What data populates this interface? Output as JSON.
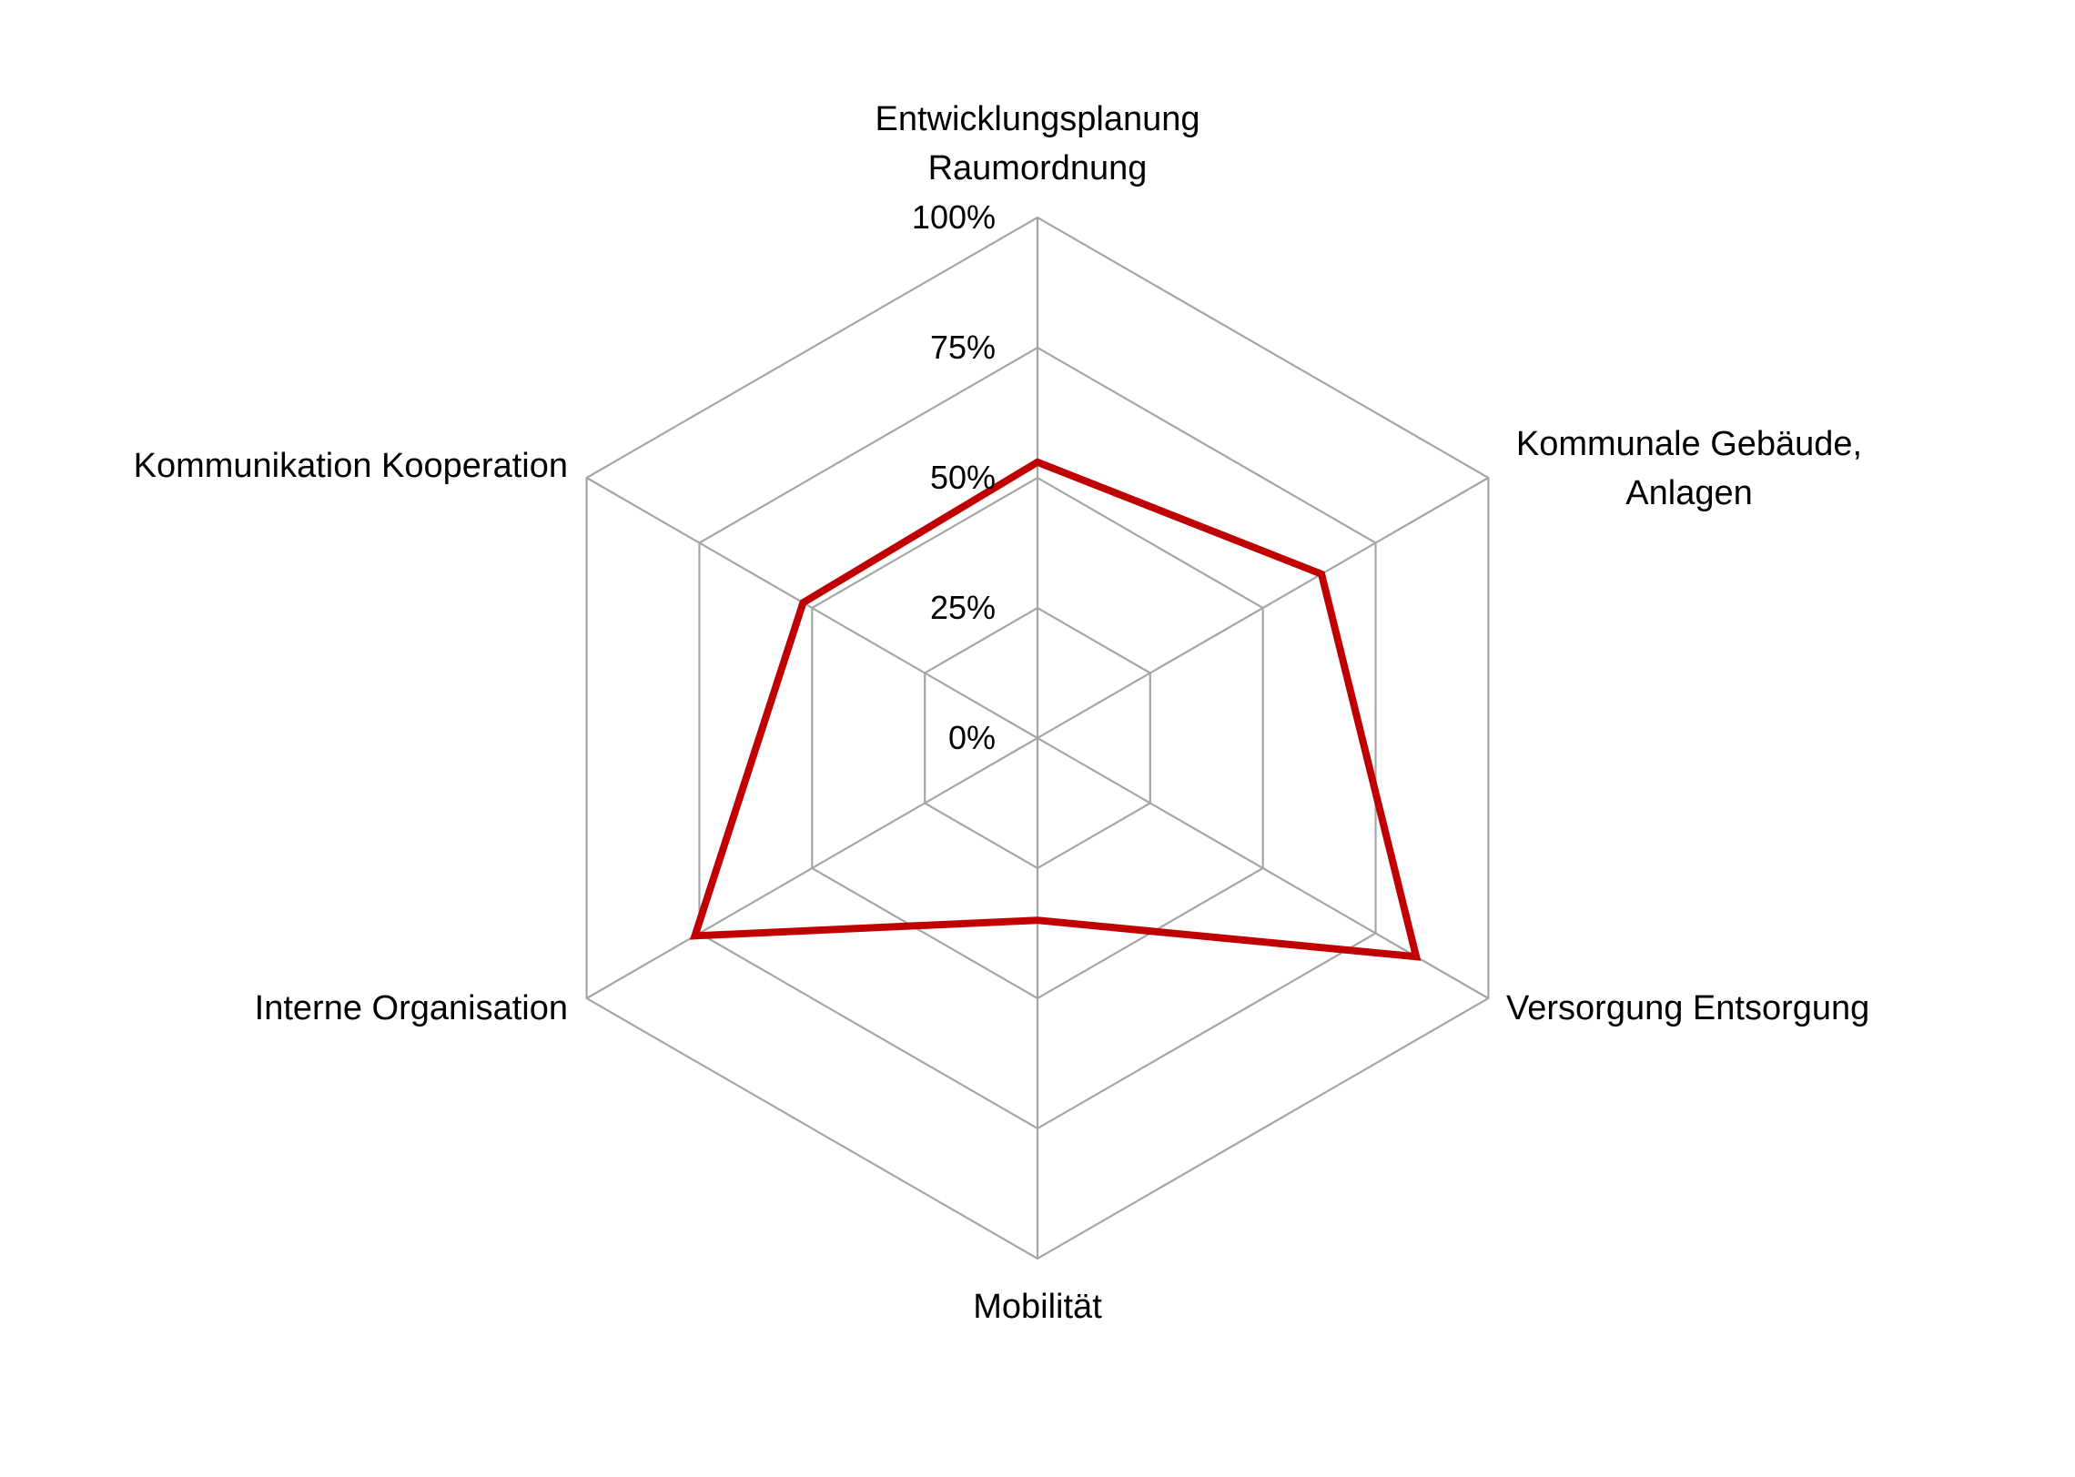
{
  "chart_data": {
    "type": "radar",
    "title": "",
    "categories": [
      [
        "Entwicklungsplanung",
        "Raumordnung"
      ],
      [
        "Kommunale Gebäude,",
        "Anlagen"
      ],
      [
        "Versorgung Entsorgung"
      ],
      [
        "Mobilität"
      ],
      [
        "Interne Organisation"
      ],
      [
        "Kommunikation Kooperation"
      ]
    ],
    "tick_labels": [
      "0%",
      "25%",
      "50%",
      "75%",
      "100%"
    ],
    "range": [
      0,
      1
    ],
    "grid": true,
    "legend": "none",
    "series": [
      {
        "values": [
          0.53,
          0.63,
          0.84,
          0.35,
          0.76,
          0.52
        ],
        "color": "#c00000"
      }
    ]
  }
}
